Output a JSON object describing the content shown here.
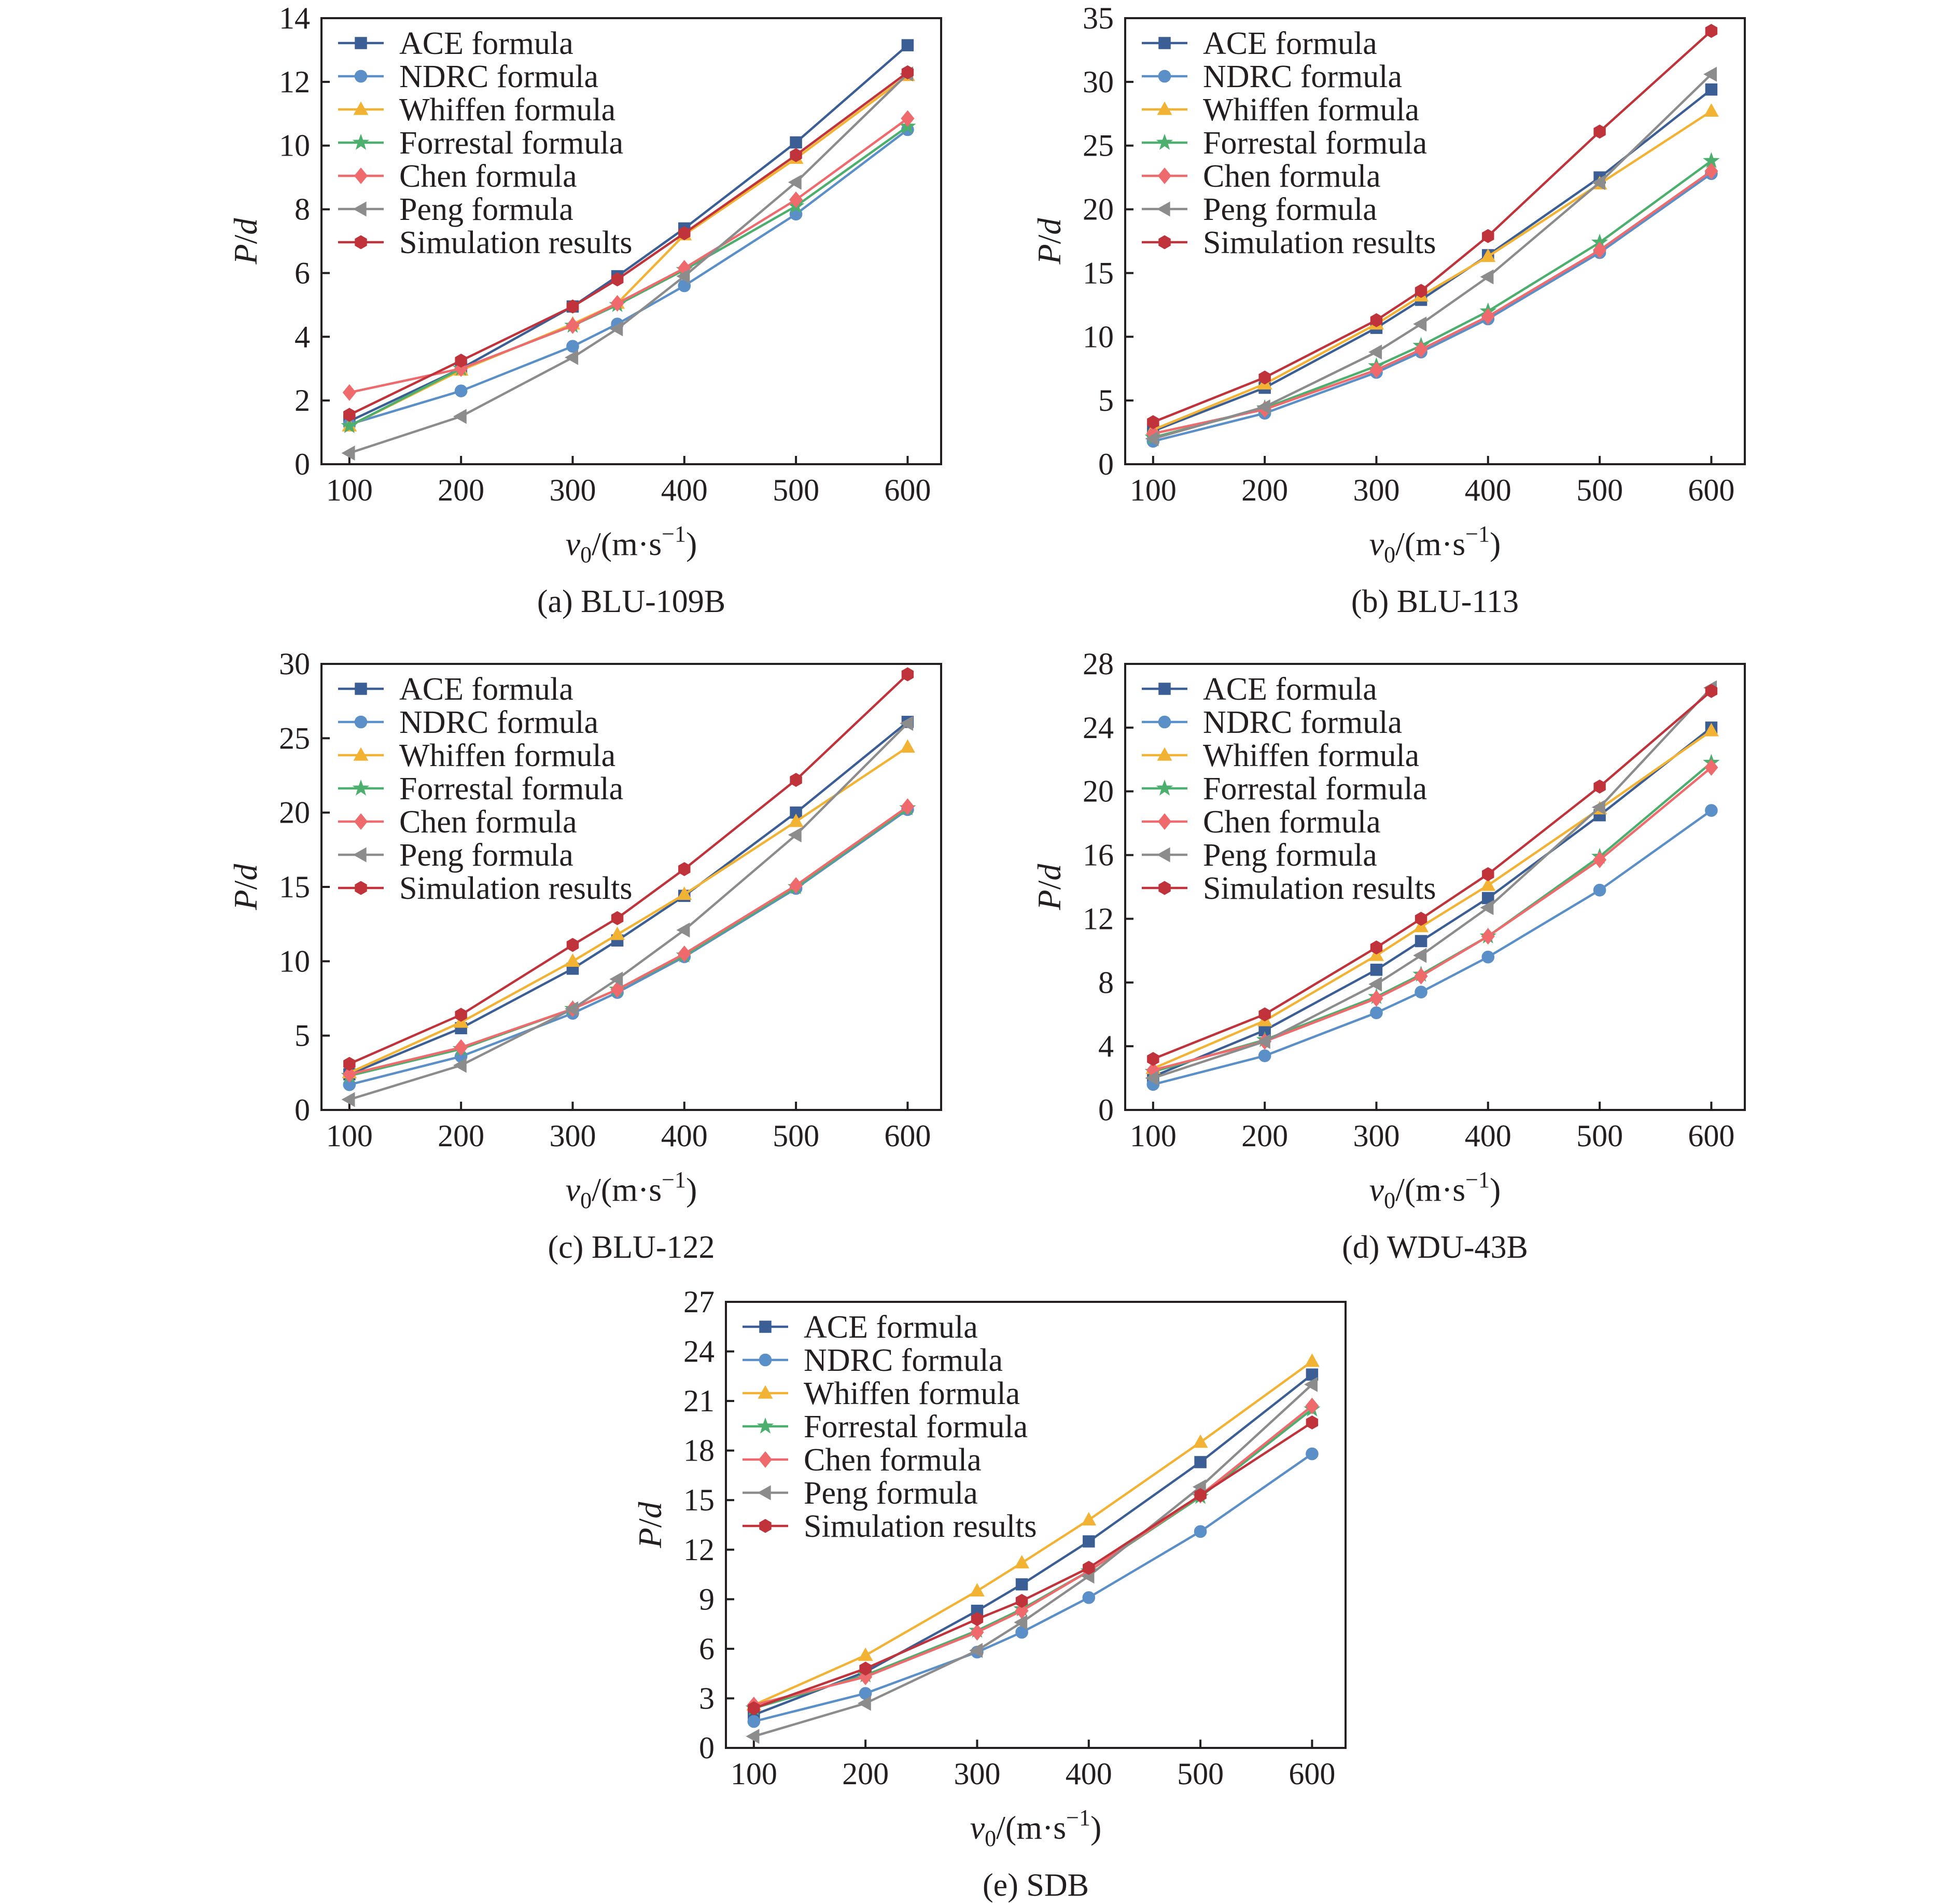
{
  "figure": {
    "type": "line-chart-grid",
    "x_label_main": "v",
    "x_label_sub": "0",
    "x_label_unit": "/(m·s",
    "x_label_sup": "−1",
    "x_label_close": ")",
    "y_label_p": "P",
    "y_label_slash": "/",
    "y_label_d": "d"
  },
  "legend_entries": [
    "ACE formula",
    "NDRC formula",
    "Whiffen formula",
    "Forrestal formula",
    "Chen formula",
    "Peng formula",
    "Simulation results"
  ],
  "series_styles": [
    {
      "name": "ACE formula",
      "color": "#3b5f95",
      "marker": "square"
    },
    {
      "name": "NDRC formula",
      "color": "#5b8fc7",
      "marker": "circle"
    },
    {
      "name": "Whiffen formula",
      "color": "#f2b233",
      "marker": "triangle-up"
    },
    {
      "name": "Forrestal formula",
      "color": "#4caf6e",
      "marker": "star"
    },
    {
      "name": "Chen formula",
      "color": "#ee6a6d",
      "marker": "diamond"
    },
    {
      "name": "Peng formula",
      "color": "#8c8c8c",
      "marker": "triangle-left"
    },
    {
      "name": "Simulation results",
      "color": "#c0333a",
      "marker": "hexagon"
    }
  ],
  "chart_data": [
    {
      "type": "line",
      "caption": "(a) BLU-109B",
      "x": [
        100,
        200,
        300,
        340,
        400,
        500,
        600
      ],
      "xlim": [
        75,
        630
      ],
      "ylim": [
        0,
        14
      ],
      "yticks": [
        0,
        2,
        4,
        6,
        8,
        10,
        12,
        14
      ],
      "xticks": [
        100,
        200,
        300,
        400,
        500,
        600
      ],
      "series": [
        {
          "name": "ACE formula",
          "values": [
            1.35,
            3.0,
            4.95,
            5.9,
            7.4,
            10.1,
            13.15
          ]
        },
        {
          "name": "NDRC formula",
          "values": [
            1.25,
            2.3,
            3.7,
            4.4,
            5.6,
            7.85,
            10.5
          ]
        },
        {
          "name": "Whiffen formula",
          "values": [
            1.2,
            2.95,
            4.4,
            5.05,
            7.2,
            9.6,
            12.2
          ]
        },
        {
          "name": "Forrestal formula",
          "values": [
            1.2,
            3.0,
            4.35,
            5.0,
            6.1,
            8.1,
            10.6
          ]
        },
        {
          "name": "Chen formula",
          "values": [
            2.25,
            3.0,
            4.35,
            5.05,
            6.15,
            8.3,
            10.85
          ]
        },
        {
          "name": "Peng formula",
          "values": [
            0.35,
            1.5,
            3.35,
            4.25,
            5.9,
            8.85,
            12.25
          ]
        },
        {
          "name": "Simulation results",
          "values": [
            1.55,
            3.25,
            4.95,
            5.8,
            7.25,
            9.7,
            12.3
          ]
        }
      ]
    },
    {
      "type": "line",
      "caption": "(b) BLU-113",
      "x": [
        100,
        200,
        300,
        340,
        400,
        500,
        600
      ],
      "xlim": [
        75,
        630
      ],
      "ylim": [
        0,
        35
      ],
      "yticks": [
        0,
        5,
        10,
        15,
        20,
        25,
        30,
        35
      ],
      "xticks": [
        100,
        200,
        300,
        400,
        500,
        600
      ],
      "series": [
        {
          "name": "ACE formula",
          "values": [
            2.6,
            6.0,
            10.7,
            12.9,
            16.4,
            22.5,
            29.4
          ]
        },
        {
          "name": "NDRC formula",
          "values": [
            1.8,
            4.0,
            7.2,
            8.8,
            11.4,
            16.6,
            22.8
          ]
        },
        {
          "name": "Whiffen formula",
          "values": [
            2.7,
            6.3,
            11.0,
            13.2,
            16.3,
            22.0,
            27.7
          ]
        },
        {
          "name": "Forrestal formula",
          "values": [
            2.1,
            4.4,
            7.7,
            9.3,
            12.0,
            17.4,
            23.8
          ]
        },
        {
          "name": "Chen formula",
          "values": [
            2.4,
            4.3,
            7.4,
            9.0,
            11.6,
            16.8,
            23.0
          ]
        },
        {
          "name": "Peng formula",
          "values": [
            2.0,
            4.5,
            8.8,
            11.0,
            14.7,
            22.1,
            30.6
          ]
        },
        {
          "name": "Simulation results",
          "values": [
            3.3,
            6.8,
            11.3,
            13.6,
            17.9,
            26.1,
            34.0
          ]
        }
      ]
    },
    {
      "type": "line",
      "caption": "(c) BLU-122",
      "x": [
        100,
        200,
        300,
        340,
        400,
        500,
        600
      ],
      "xlim": [
        75,
        630
      ],
      "ylim": [
        0,
        30
      ],
      "yticks": [
        0,
        5,
        10,
        15,
        20,
        25,
        30
      ],
      "xticks": [
        100,
        200,
        300,
        400,
        500,
        600
      ],
      "series": [
        {
          "name": "ACE formula",
          "values": [
            2.4,
            5.5,
            9.5,
            11.4,
            14.4,
            20.0,
            26.1
          ]
        },
        {
          "name": "NDRC formula",
          "values": [
            1.7,
            3.6,
            6.5,
            7.9,
            10.3,
            14.9,
            20.2
          ]
        },
        {
          "name": "Whiffen formula",
          "values": [
            2.5,
            5.9,
            10.0,
            11.8,
            14.5,
            19.4,
            24.4
          ]
        },
        {
          "name": "Forrestal formula",
          "values": [
            2.3,
            4.1,
            6.8,
            8.1,
            10.4,
            15.0,
            20.3
          ]
        },
        {
          "name": "Chen formula",
          "values": [
            2.4,
            4.2,
            6.8,
            8.1,
            10.5,
            15.1,
            20.4
          ]
        },
        {
          "name": "Peng formula",
          "values": [
            0.7,
            3.0,
            6.8,
            8.8,
            12.1,
            18.5,
            26.0
          ]
        },
        {
          "name": "Simulation results",
          "values": [
            3.1,
            6.4,
            11.1,
            12.9,
            16.2,
            22.2,
            29.3
          ]
        }
      ]
    },
    {
      "type": "line",
      "caption": "(d) WDU-43B",
      "x": [
        100,
        200,
        300,
        340,
        400,
        500,
        600
      ],
      "xlim": [
        75,
        630
      ],
      "ylim": [
        0,
        28
      ],
      "yticks": [
        0,
        4,
        8,
        12,
        16,
        20,
        24,
        28
      ],
      "xticks": [
        100,
        200,
        300,
        400,
        500,
        600
      ],
      "series": [
        {
          "name": "ACE formula",
          "values": [
            2.1,
            5.0,
            8.8,
            10.6,
            13.3,
            18.5,
            24.0
          ]
        },
        {
          "name": "NDRC formula",
          "values": [
            1.6,
            3.4,
            6.1,
            7.4,
            9.6,
            13.8,
            18.8
          ]
        },
        {
          "name": "Whiffen formula",
          "values": [
            2.6,
            5.6,
            9.7,
            11.5,
            14.1,
            18.9,
            23.8
          ]
        },
        {
          "name": "Forrestal formula",
          "values": [
            2.4,
            4.4,
            7.1,
            8.5,
            10.9,
            15.9,
            21.8
          ]
        },
        {
          "name": "Chen formula",
          "values": [
            2.5,
            4.3,
            7.0,
            8.4,
            10.9,
            15.7,
            21.5
          ]
        },
        {
          "name": "Peng formula",
          "values": [
            2.0,
            4.3,
            7.9,
            9.7,
            12.7,
            19.0,
            26.5
          ]
        },
        {
          "name": "Simulation results",
          "values": [
            3.2,
            6.0,
            10.2,
            12.0,
            14.8,
            20.3,
            26.3
          ]
        }
      ]
    },
    {
      "type": "line",
      "caption": "(e) SDB",
      "x": [
        100,
        200,
        300,
        340,
        400,
        500,
        600
      ],
      "xlim": [
        75,
        630
      ],
      "ylim": [
        0,
        27
      ],
      "yticks": [
        0,
        3,
        6,
        9,
        12,
        15,
        18,
        21,
        24,
        27
      ],
      "xticks": [
        100,
        200,
        300,
        400,
        500,
        600
      ],
      "series": [
        {
          "name": "ACE formula",
          "values": [
            2.0,
            4.6,
            8.3,
            9.9,
            12.5,
            17.3,
            22.6
          ]
        },
        {
          "name": "NDRC formula",
          "values": [
            1.6,
            3.3,
            5.8,
            7.0,
            9.1,
            13.1,
            17.8
          ]
        },
        {
          "name": "Whiffen formula",
          "values": [
            2.6,
            5.6,
            9.5,
            11.2,
            13.8,
            18.5,
            23.4
          ]
        },
        {
          "name": "Forrestal formula",
          "values": [
            2.4,
            4.4,
            7.1,
            8.4,
            10.7,
            15.2,
            20.5
          ]
        },
        {
          "name": "Chen formula",
          "values": [
            2.6,
            4.3,
            7.0,
            8.3,
            10.7,
            15.3,
            20.7
          ]
        },
        {
          "name": "Peng formula",
          "values": [
            0.7,
            2.7,
            5.9,
            7.6,
            10.4,
            15.8,
            22.0
          ]
        },
        {
          "name": "Simulation results",
          "values": [
            2.4,
            4.8,
            7.8,
            8.9,
            10.9,
            15.3,
            19.7
          ]
        }
      ]
    }
  ]
}
